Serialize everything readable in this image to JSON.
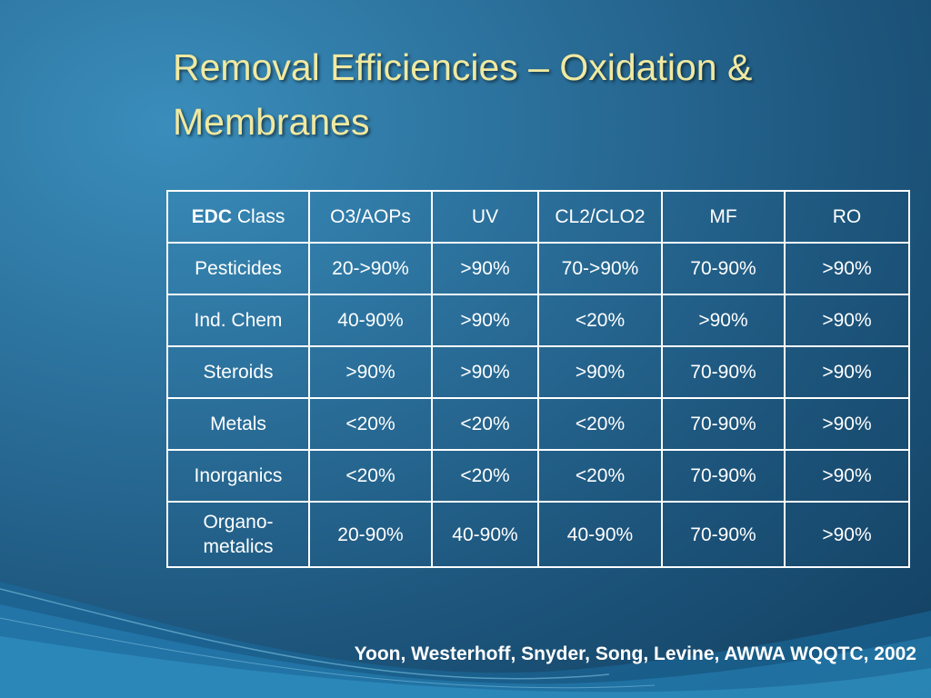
{
  "slide": {
    "title_line1": "Removal Efficiencies – Oxidation &",
    "title_line2": "Membranes",
    "citation": "Yoon, Westerhoff, Snyder, Song, Levine, AWWA WQQTC, 2002"
  },
  "table": {
    "header_bold": "EDC",
    "header_rest": " Class",
    "columns": [
      "O3/AOPs",
      "UV",
      "CL2/CLO2",
      "MF",
      "RO"
    ],
    "rows": [
      {
        "label": "Pesticides",
        "cells": [
          "20->90%",
          ">90%",
          "70->90%",
          "70-90%",
          ">90%"
        ]
      },
      {
        "label": "Ind. Chem",
        "cells": [
          "40-90%",
          ">90%",
          "<20%",
          ">90%",
          ">90%"
        ]
      },
      {
        "label": "Steroids",
        "cells": [
          ">90%",
          ">90%",
          ">90%",
          "70-90%",
          ">90%"
        ]
      },
      {
        "label": "Metals",
        "cells": [
          "<20%",
          "<20%",
          "<20%",
          "70-90%",
          ">90%"
        ]
      },
      {
        "label": "Inorganics",
        "cells": [
          "<20%",
          "<20%",
          "<20%",
          "70-90%",
          ">90%"
        ]
      },
      {
        "label_line1": "Organo-",
        "label_line2": "metalics",
        "cells": [
          "20-90%",
          "40-90%",
          "40-90%",
          "70-90%",
          ">90%"
        ]
      }
    ]
  },
  "colors": {
    "title": "#f0e9a0",
    "text": "#ffffff",
    "background": "#2a6f9a"
  }
}
